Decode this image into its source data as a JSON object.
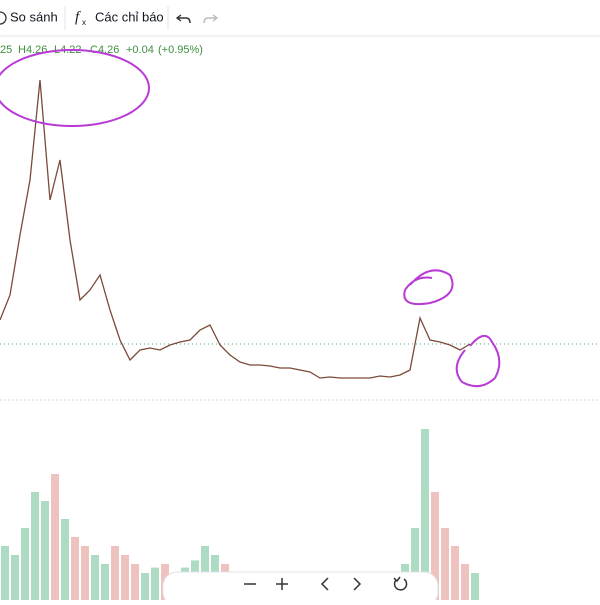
{
  "toolbar": {
    "compare": "So sánh",
    "indicators": "Các chỉ báo"
  },
  "legend": {
    "open": "25",
    "high": "H4.26",
    "low": "L4.22",
    "close": "C4.26",
    "change": "+0.04",
    "change_percent": "(+0.95%)"
  },
  "chart_data": {
    "type": "line",
    "color": "#7a4a3a",
    "values": [
      4.5,
      4.75,
      5.35,
      5.9,
      6.9,
      5.7,
      6.1,
      5.3,
      4.7,
      4.8,
      4.95,
      4.6,
      4.3,
      4.1,
      4.2,
      4.22,
      4.2,
      4.25,
      4.28,
      4.3,
      4.4,
      4.45,
      4.25,
      4.15,
      4.08,
      4.05,
      4.05,
      4.04,
      4.02,
      4.02,
      4.0,
      3.98,
      3.92,
      3.93,
      3.92,
      3.92,
      3.92,
      3.92,
      3.94,
      3.93,
      3.95,
      4.0,
      4.52,
      4.3,
      4.28,
      4.25,
      4.2,
      4.26
    ],
    "ylim": [
      3.7,
      7.3
    ],
    "volume": [
      30,
      25,
      40,
      60,
      55,
      70,
      45,
      35,
      30,
      25,
      20,
      30,
      25,
      20,
      15,
      18,
      20,
      15,
      18,
      22,
      30,
      25,
      20,
      15,
      12,
      10,
      12,
      10,
      8,
      10,
      8,
      12,
      10,
      8,
      10,
      8,
      10,
      12,
      10,
      15,
      20,
      40,
      95,
      60,
      40,
      30,
      20,
      15
    ],
    "volume_lim": [
      0,
      100
    ],
    "up_color": "#4caf7a",
    "down_color": "#d9776f"
  }
}
